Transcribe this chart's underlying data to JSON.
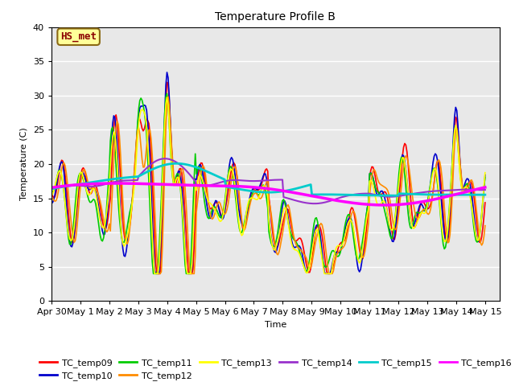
{
  "title": "Temperature Profile B",
  "xlabel": "Time",
  "ylabel": "Temperature (C)",
  "ylim": [
    0,
    40
  ],
  "annotation": "HS_met",
  "annotation_color": "#8B0000",
  "annotation_bg": "#FFFF99",
  "series_colors": {
    "TC_temp09": "#FF0000",
    "TC_temp10": "#0000CC",
    "TC_temp11": "#00CC00",
    "TC_temp12": "#FF8C00",
    "TC_temp13": "#FFFF00",
    "TC_temp14": "#9932CC",
    "TC_temp15": "#00CCCC",
    "TC_temp16": "#FF00FF"
  },
  "series_order": [
    "TC_temp09",
    "TC_temp10",
    "TC_temp11",
    "TC_temp12",
    "TC_temp13",
    "TC_temp14",
    "TC_temp15",
    "TC_temp16"
  ],
  "bg_color": "#E8E8E8",
  "grid_color": "#FFFFFF",
  "tick_labels": [
    "Apr 30",
    "May 1",
    "May 2",
    "May 3",
    "May 4",
    "May 5",
    "May 6",
    "May 7",
    "May 8",
    "May 9",
    "May 10",
    "May 11",
    "May 12",
    "May 13",
    "May 14",
    "May 15"
  ],
  "tick_positions": [
    0,
    1,
    2,
    3,
    4,
    5,
    6,
    7,
    8,
    9,
    10,
    11,
    12,
    13,
    14,
    15
  ],
  "figsize": [
    6.4,
    4.8
  ],
  "dpi": 100
}
